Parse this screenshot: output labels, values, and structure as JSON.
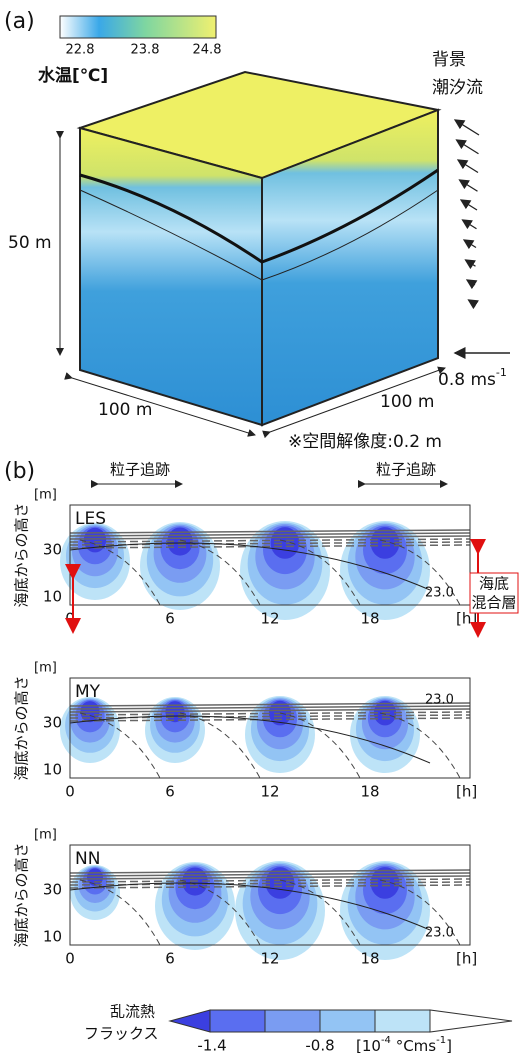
{
  "panel_a": {
    "label": "(a)",
    "colorbar": {
      "ticks": [
        "22.8",
        "23.8",
        "24.8"
      ],
      "title": "水温[℃]"
    },
    "height": "50 m",
    "width_left": "100 m",
    "width_right": "100 m",
    "current_title": [
      "背景",
      "潮汐流"
    ],
    "scale_arrow": {
      "text": "0.8 ms",
      "exponent": "-1"
    },
    "resolution": "※空間解像度:0.2 m"
  },
  "panel_b": {
    "label": "(b)",
    "tracking": [
      "粒子追跡",
      "粒子追跡"
    ],
    "ylabel": "海底からの高さ",
    "yunit": "[m]",
    "xunit": "[h]",
    "yticks": [
      "10",
      "30"
    ],
    "xticks": [
      "0",
      "6",
      "12",
      "18"
    ],
    "subplots": [
      {
        "name": "LES",
        "contour": "23.0"
      },
      {
        "name": "MY",
        "contour": "23.0"
      },
      {
        "name": "NN",
        "contour": "23.0"
      }
    ],
    "mixed_layer": [
      "海底",
      "混合層"
    ],
    "colorbar": {
      "title": [
        "乱流熱",
        "フラックス"
      ],
      "ticks": [
        "-1.4",
        "-0.8"
      ],
      "unit": [
        "[10",
        "-4",
        " °Cms",
        "-1",
        "]"
      ]
    }
  }
}
